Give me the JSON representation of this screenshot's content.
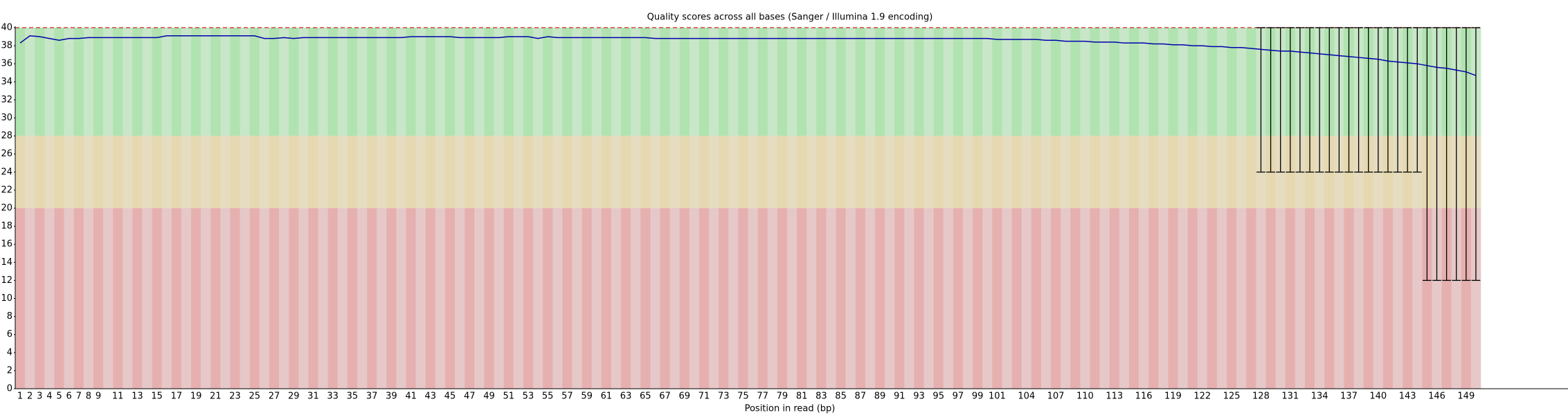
{
  "chart_data": {
    "type": "quality-line",
    "title": "Quality scores across all bases (Sanger / Illumina 1.9 encoding)",
    "xlabel": "Position in read (bp)",
    "categories": [
      1,
      2,
      3,
      4,
      5,
      6,
      7,
      8,
      9,
      null,
      11,
      null,
      13,
      null,
      15,
      null,
      17,
      null,
      19,
      null,
      21,
      null,
      23,
      null,
      25,
      null,
      27,
      null,
      29,
      null,
      31,
      null,
      33,
      null,
      35,
      null,
      37,
      null,
      39,
      null,
      41,
      null,
      43,
      null,
      45,
      null,
      47,
      null,
      49,
      null,
      51,
      null,
      53,
      null,
      55,
      null,
      57,
      null,
      59,
      null,
      61,
      null,
      63,
      null,
      65,
      null,
      67,
      null,
      69,
      null,
      71,
      null,
      73,
      null,
      75,
      null,
      77,
      null,
      79,
      null,
      81,
      null,
      83,
      null,
      85,
      null,
      87,
      null,
      89,
      null,
      91,
      null,
      93,
      null,
      95,
      null,
      97,
      null,
      99,
      null,
      101,
      null,
      null,
      104,
      null,
      null,
      107,
      null,
      null,
      110,
      null,
      null,
      113,
      null,
      null,
      116,
      null,
      null,
      119,
      null,
      null,
      122,
      null,
      null,
      125,
      null,
      null,
      128,
      null,
      null,
      131,
      null,
      null,
      134,
      null,
      null,
      137,
      null,
      null,
      140,
      null,
      null,
      143,
      null,
      null,
      146,
      null,
      null,
      149,
      null
    ],
    "mean": [
      38.3,
      39.1,
      39.0,
      38.8,
      38.6,
      38.8,
      38.8,
      38.9,
      38.9,
      38.9,
      38.9,
      38.9,
      38.9,
      38.9,
      38.9,
      39.1,
      39.1,
      39.1,
      39.1,
      39.1,
      39.1,
      39.1,
      39.1,
      39.1,
      39.1,
      38.8,
      38.8,
      38.9,
      38.8,
      38.9,
      38.9,
      38.9,
      38.9,
      38.9,
      38.9,
      38.9,
      38.9,
      38.9,
      38.9,
      38.9,
      39.0,
      39.0,
      39.0,
      39.0,
      39.0,
      38.9,
      38.9,
      38.9,
      38.9,
      38.9,
      39.0,
      39.0,
      39.0,
      38.8,
      39.0,
      38.9,
      38.9,
      38.9,
      38.9,
      38.9,
      38.9,
      38.9,
      38.9,
      38.9,
      38.9,
      38.8,
      38.8,
      38.8,
      38.8,
      38.8,
      38.8,
      38.8,
      38.8,
      38.8,
      38.8,
      38.8,
      38.8,
      38.8,
      38.8,
      38.8,
      38.8,
      38.8,
      38.8,
      38.8,
      38.8,
      38.8,
      38.8,
      38.8,
      38.8,
      38.8,
      38.8,
      38.8,
      38.8,
      38.8,
      38.8,
      38.8,
      38.8,
      38.8,
      38.8,
      38.8,
      38.7,
      38.7,
      38.7,
      38.7,
      38.7,
      38.6,
      38.6,
      38.5,
      38.5,
      38.5,
      38.4,
      38.4,
      38.4,
      38.3,
      38.3,
      38.3,
      38.2,
      38.2,
      38.1,
      38.1,
      38.0,
      38.0,
      37.9,
      37.9,
      37.8,
      37.8,
      37.7,
      37.6,
      37.5,
      37.4,
      37.4,
      37.3,
      37.2,
      37.1,
      37.0,
      36.9,
      36.8,
      36.7,
      36.6,
      36.5,
      36.3,
      36.2,
      36.1,
      36.0,
      35.8,
      35.6,
      35.5,
      35.3,
      35.1,
      34.7
    ],
    "line_color": "#0000aa",
    "whiskers": {
      "positions": [
        128,
        129,
        130,
        131,
        132,
        133,
        134,
        135,
        136,
        137,
        138,
        139,
        140,
        141,
        142,
        143,
        144,
        145,
        146,
        147,
        148,
        149,
        150
      ],
      "low": [
        24,
        24,
        24,
        24,
        24,
        24,
        24,
        24,
        24,
        24,
        24,
        24,
        24,
        24,
        24,
        24,
        24,
        12,
        12,
        12,
        12,
        12,
        12
      ],
      "high": [
        40,
        40,
        40,
        40,
        40,
        40,
        40,
        40,
        40,
        40,
        40,
        40,
        40,
        40,
        40,
        40,
        40,
        40,
        40,
        40,
        40,
        40,
        40
      ]
    },
    "bands": [
      {
        "from": 28,
        "to": 40,
        "colors": [
          "#b0e3b0",
          "#c8e6c8"
        ]
      },
      {
        "from": 20,
        "to": 28,
        "colors": [
          "#e6d8b0",
          "#e6dcc0"
        ]
      },
      {
        "from": 0,
        "to": 20,
        "colors": [
          "#e6b0b0",
          "#e6c8c8"
        ]
      }
    ],
    "ylim": [
      0,
      40
    ],
    "yticks": [
      0,
      2,
      4,
      6,
      8,
      10,
      12,
      14,
      16,
      18,
      20,
      22,
      24,
      26,
      28,
      30,
      32,
      34,
      36,
      38,
      40
    ]
  }
}
